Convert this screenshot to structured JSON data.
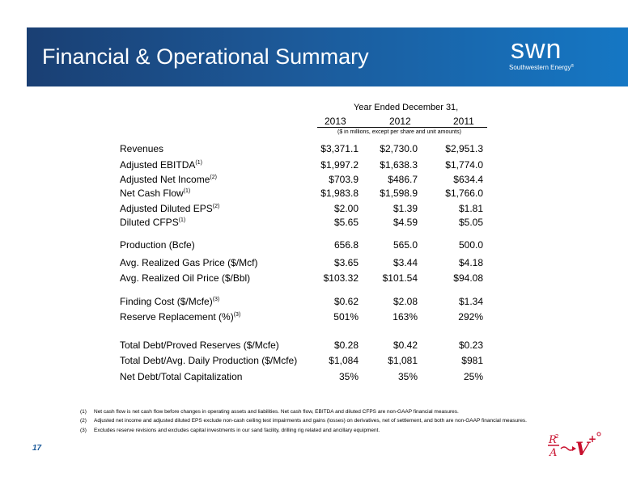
{
  "header": {
    "title": "Financial & Operational Summary",
    "logo_word": "swn",
    "logo_sub": "Southwestern Energy",
    "logo_reg": "®"
  },
  "table": {
    "period_label": "Year Ended December 31,",
    "years": [
      "2013",
      "2012",
      "2011"
    ],
    "units_note": "($ in millions, except per share and unit amounts)",
    "rows": [
      {
        "label": "Revenues",
        "note": "",
        "values": [
          "$3,371.1",
          "$2,730.0",
          "$2,951.3"
        ]
      },
      {
        "label": "Adjusted EBITDA",
        "note": "(1)",
        "values": [
          "$1,997.2",
          "$1,638.3",
          "$1,774.0"
        ]
      },
      {
        "label": "Adjusted Net Income",
        "note": "(2)",
        "values": [
          "$703.9",
          "$486.7",
          "$634.4"
        ]
      },
      {
        "label": "Net Cash Flow",
        "note": "(1)",
        "values": [
          "$1,983.8",
          "$1,598.9",
          "$1,766.0"
        ]
      },
      {
        "label": "Adjusted Diluted EPS",
        "note": "(2)",
        "values": [
          "$2.00",
          "$1.39",
          "$1.81"
        ]
      },
      {
        "label": "Diluted CFPS",
        "note": "(1)",
        "values": [
          "$5.65",
          "$4.59",
          "$5.05"
        ]
      },
      {
        "label": "Production (Bcfe)",
        "note": "",
        "values": [
          "656.8",
          "565.0",
          "500.0"
        ]
      },
      {
        "label": "Avg. Realized Gas Price ($/Mcf)",
        "note": "",
        "values": [
          "$3.65",
          "$3.44",
          "$4.18"
        ]
      },
      {
        "label": "Avg. Realized Oil Price ($/Bbl)",
        "note": "",
        "values": [
          "$103.32",
          "$101.54",
          "$94.08"
        ]
      },
      {
        "label": "Finding Cost ($/Mcfe)",
        "note": "(3)",
        "values": [
          "$0.62",
          "$2.08",
          "$1.34"
        ]
      },
      {
        "label": "Reserve Replacement (%)",
        "note": "(3)",
        "values": [
          "501%",
          "163%",
          "292%"
        ]
      },
      {
        "label": "Total Debt/Proved Reserves ($/Mcfe)",
        "note": "",
        "values": [
          "$0.28",
          "$0.42",
          "$0.23"
        ]
      },
      {
        "label": "Total Debt/Avg. Daily Production ($/Mcfe)",
        "note": "",
        "values": [
          "$1,084",
          "$1,081",
          "$981"
        ]
      },
      {
        "label": "Net Debt/Total Capitalization",
        "note": "",
        "values": [
          "35%",
          "35%",
          "25%"
        ]
      }
    ]
  },
  "footnotes": [
    {
      "num": "(1)",
      "text": "Net cash flow is net cash flow before changes in operating assets and liabilities.  Net cash flow, EBITDA and diluted CFPS are non-GAAP financial measures."
    },
    {
      "num": "(2)",
      "text": "Adjusted net income and adjusted diluted EPS exclude non-cash ceiling test impairments and gains (losses) on derivatives, net of settlement, and both are non-GAAP financial measures."
    },
    {
      "num": "(3)",
      "text": "Excludes reserve revisions and excludes capital investments in our sand facility, drilling rig related and ancillary equipment."
    }
  ],
  "page_number": "17",
  "colors": {
    "banner_dark": "#1a3f73",
    "banner_light": "#1577c4",
    "accent_red": "#c8102e"
  }
}
